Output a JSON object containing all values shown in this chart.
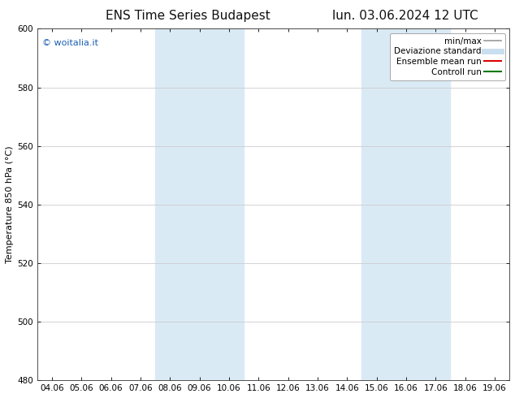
{
  "title_left": "ENS Time Series Budapest",
  "title_right": "lun. 03.06.2024 12 UTC",
  "ylabel": "Temperature 850 hPa (°C)",
  "xlim_dates": [
    "04.06",
    "05.06",
    "06.06",
    "07.06",
    "08.06",
    "09.06",
    "10.06",
    "11.06",
    "12.06",
    "13.06",
    "14.06",
    "15.06",
    "16.06",
    "17.06",
    "18.06",
    "19.06"
  ],
  "ylim": [
    480,
    600
  ],
  "yticks": [
    480,
    500,
    520,
    540,
    560,
    580,
    600
  ],
  "shaded_bands": [
    {
      "xstart_idx": 4,
      "xend_idx": 6
    },
    {
      "xstart_idx": 11,
      "xend_idx": 13
    }
  ],
  "shaded_color": "#daeaf5",
  "watermark": "© woitalia.it",
  "watermark_color": "#1a5fb4",
  "legend_entries": [
    {
      "label": "min/max",
      "color": "#999999",
      "lw": 1.2,
      "style": "solid"
    },
    {
      "label": "Deviazione standard",
      "color": "#c8dff0",
      "lw": 5,
      "style": "solid"
    },
    {
      "label": "Ensemble mean run",
      "color": "#dd0000",
      "lw": 1.5,
      "style": "solid"
    },
    {
      "label": "Controll run",
      "color": "#007700",
      "lw": 1.5,
      "style": "solid"
    }
  ],
  "bg_color": "#ffffff",
  "grid_color": "#cccccc",
  "title_fontsize": 11,
  "label_fontsize": 8,
  "tick_fontsize": 7.5,
  "legend_fontsize": 7.5,
  "watermark_fontsize": 8
}
